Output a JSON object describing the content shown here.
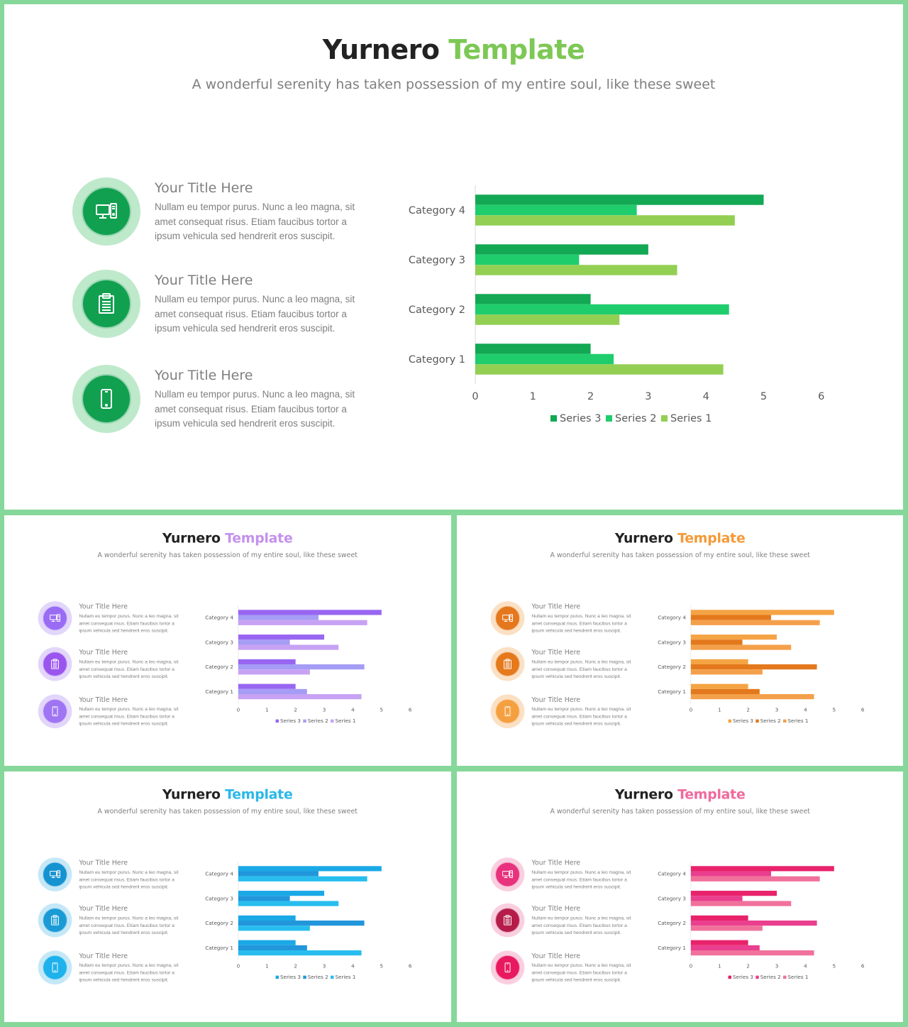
{
  "heading": {
    "title_dark": "Yurnero",
    "title_accent": "Template",
    "subtitle": "A wonderful serenity has taken possession of my entire soul, like these sweet"
  },
  "items": [
    {
      "title": "Your Title Here",
      "text": "Nullam eu tempor purus. Nunc a leo magna, sit amet consequat risus. Etiam faucibus tortor a ipsum vehicula sed hendrerit eros suscipit.",
      "icon": "computer-icon"
    },
    {
      "title": "Your Title Here",
      "text": "Nullam eu tempor purus. Nunc a leo magna, sit amet consequat risus. Etiam faucibus tortor a ipsum vehicula sed hendrerit eros suscipit.",
      "icon": "clipboard-icon"
    },
    {
      "title": "Your Title Here",
      "text": "Nullam eu tempor purus. Nunc a leo magna, sit amet consequat risus. Etiam faucibus tortor a ipsum vehicula sed hendrerit eros suscipit.",
      "icon": "smartphone-icon"
    }
  ],
  "themes": [
    {
      "name": "green",
      "accent": "#7dc855",
      "series_colors": [
        "#13a853",
        "#1fcd6d",
        "#93cf53"
      ],
      "icon_colors": [
        "#11a04f",
        "#11a04f",
        "#11a04f"
      ],
      "ring_color": "#bfe9cb"
    },
    {
      "name": "purple",
      "accent": "#c491ee",
      "series_colors": [
        "#9966f2",
        "#a59cf6",
        "#c7a2f3"
      ],
      "icon_colors": [
        "#9a6cf4",
        "#9a55ee",
        "#a075f3"
      ],
      "ring_color": "#e2d6fb"
    },
    {
      "name": "orange",
      "accent": "#f39a38",
      "series_colors": [
        "#f5a444",
        "#e3781c",
        "#f4a04b"
      ],
      "icon_colors": [
        "#e5771d",
        "#e5791c",
        "#f5a040"
      ],
      "ring_color": "#fbe0c4"
    },
    {
      "name": "blue",
      "accent": "#2ab8e8",
      "series_colors": [
        "#1aa9e6",
        "#2196db",
        "#28bdee"
      ],
      "icon_colors": [
        "#1592d0",
        "#1a9bd6",
        "#1eb1ec"
      ],
      "ring_color": "#c5e8f7"
    },
    {
      "name": "pink",
      "accent": "#f06a9c",
      "series_colors": [
        "#e8226b",
        "#ea3e8e",
        "#f0719b"
      ],
      "icon_colors": [
        "#e8327d",
        "#b51c4a",
        "#e8195f"
      ],
      "ring_color": "#f9cfe0"
    }
  ],
  "chart_data": {
    "type": "bar",
    "orientation": "horizontal",
    "categories": [
      "Category 1",
      "Category 2",
      "Category 3",
      "Category 4"
    ],
    "series": [
      {
        "name": "Series 3",
        "values": [
          2,
          2,
          3,
          5
        ]
      },
      {
        "name": "Series 2",
        "values": [
          2.4,
          4.4,
          1.8,
          2.8
        ]
      },
      {
        "name": "Series 1",
        "values": [
          4.3,
          2.5,
          3.5,
          4.5
        ]
      }
    ],
    "xlim": [
      0,
      6
    ],
    "xticks": [
      0,
      1,
      2,
      3,
      4,
      5,
      6
    ],
    "legend_position": "bottom",
    "grid": false
  }
}
